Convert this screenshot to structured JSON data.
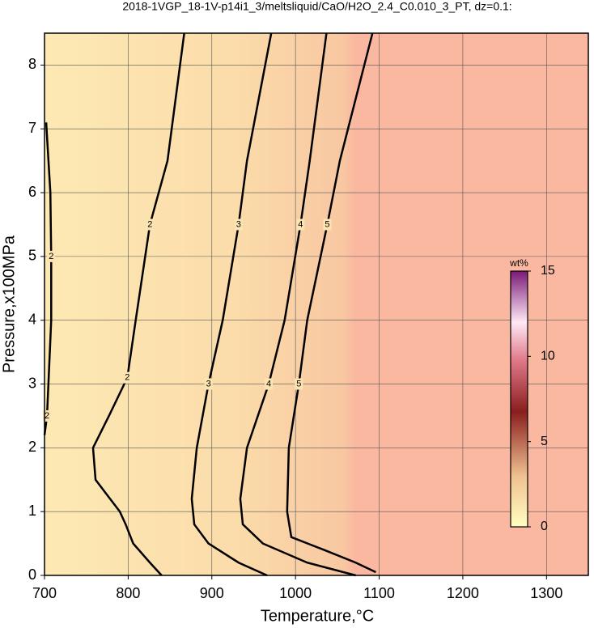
{
  "chart_data": {
    "type": "contour",
    "title": "2018-1VGP_18-1V-p14i1_3/meltsliquid/CaO/H2O_2.4_C0.010_3_PT, dz=0.1:",
    "x_label": "Temperature,°C",
    "y_label": "Pressure,x100MPa",
    "xlim": [
      700,
      1350
    ],
    "ylim": [
      0,
      8.5
    ],
    "xticks": [
      700,
      800,
      900,
      1000,
      1100,
      1200,
      1300
    ],
    "yticks": [
      0,
      1,
      2,
      3,
      4,
      5,
      6,
      7,
      8
    ],
    "grid": true,
    "contours": [
      {
        "level": 2,
        "x": [
          702,
          707,
          708,
          708,
          703,
          700
        ],
        "y": [
          7.1,
          6,
          5,
          4,
          2.5,
          2.2
        ]
      },
      {
        "level": 2,
        "x": [
          867,
          847,
          826,
          809,
          799,
          777,
          758,
          761,
          790,
          797,
          806,
          826,
          840
        ],
        "y": [
          8.5,
          6.5,
          5.5,
          4,
          3.1,
          2.5,
          2,
          1.5,
          1,
          0.8,
          0.5,
          0.2,
          0
        ]
      },
      {
        "level": 3,
        "x": [
          971,
          942,
          932,
          913,
          896,
          882,
          876,
          879,
          896,
          932,
          966
        ],
        "y": [
          8.5,
          6.5,
          5.5,
          4,
          3,
          2,
          1.2,
          0.8,
          0.5,
          0.2,
          0
        ]
      },
      {
        "level": 4,
        "x": [
          1037,
          1017,
          1006,
          987,
          968,
          942,
          934,
          937,
          961,
          1014,
          1072
        ],
        "y": [
          8.5,
          6.5,
          5.5,
          4,
          3,
          2,
          1.2,
          0.8,
          0.5,
          0.2,
          0
        ]
      },
      {
        "level": 5,
        "x": [
          1092,
          1053,
          1038,
          1014,
          1004,
          992,
          990,
          995,
          1034,
          1072,
          1096
        ],
        "y": [
          8.5,
          6.5,
          5.5,
          4,
          3,
          2,
          1,
          0.6,
          0.4,
          0.2,
          0.05
        ]
      }
    ],
    "colorbar": {
      "label": "wt%",
      "lim": [
        0,
        15
      ],
      "ticks": [
        0,
        5,
        10,
        15
      ]
    }
  }
}
